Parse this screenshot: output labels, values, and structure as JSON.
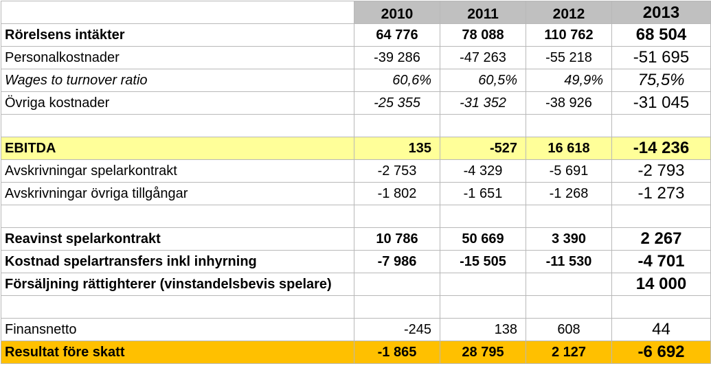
{
  "years": [
    "2010",
    "2011",
    "2012",
    "2013"
  ],
  "rows": [
    {
      "label": "Rörelsens intäkter",
      "values": [
        "64 776",
        "78 088",
        "110 762",
        "68 504"
      ]
    },
    {
      "label": "Personalkostnader",
      "values": [
        "-39 286",
        "-47 263",
        "-55 218",
        "-51 695"
      ]
    },
    {
      "label": "Wages to turnover ratio",
      "values": [
        "60,6%",
        "60,5%",
        "49,9%",
        "75,5%"
      ]
    },
    {
      "label": "Övriga kostnader",
      "values": [
        "-25 355",
        "-31 352",
        "-38 926",
        "-31 045"
      ]
    },
    {
      "label": "",
      "values": [
        "",
        "",
        "",
        ""
      ]
    },
    {
      "label": "EBITDA",
      "values": [
        "135",
        "-527",
        "16 618",
        "-14 236"
      ]
    },
    {
      "label": "Avskrivningar spelarkontrakt",
      "values": [
        "-2 753",
        "-4 329",
        "-5 691",
        "-2 793"
      ]
    },
    {
      "label": "Avskrivningar övriga tillgångar",
      "values": [
        "-1 802",
        "-1 651",
        "-1 268",
        "-1 273"
      ]
    },
    {
      "label": "",
      "values": [
        "",
        "",
        "",
        ""
      ]
    },
    {
      "label": "Reavinst spelarkontrakt",
      "values": [
        "10 786",
        "50 669",
        "3 390",
        "2 267"
      ]
    },
    {
      "label": "Kostnad spelartransfers inkl inhyrning",
      "values": [
        "-7 986",
        "-15 505",
        "-11 530",
        "-4 701"
      ]
    },
    {
      "label": "Försäljning rättighterer (vinstandelsbevis spelare)",
      "values": [
        "",
        "",
        "",
        "14 000"
      ]
    },
    {
      "label": "",
      "values": [
        "",
        "",
        "",
        ""
      ]
    },
    {
      "label": "Finansnetto",
      "values": [
        "-245",
        "138",
        "608",
        "44"
      ]
    },
    {
      "label": "Resultat före skatt",
      "values": [
        "-1 865",
        "28 795",
        "2 127",
        "-6 692"
      ]
    }
  ],
  "colors": {
    "header_bg": "#c0c0c0",
    "ebitda_bg": "#ffff99",
    "result_bg": "#ffc000",
    "grid": "#b8b8b8"
  }
}
